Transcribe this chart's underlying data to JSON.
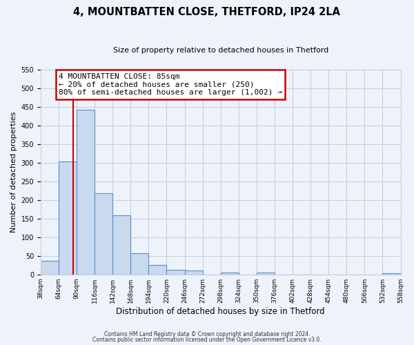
{
  "title": "4, MOUNTBATTEN CLOSE, THETFORD, IP24 2LA",
  "subtitle": "Size of property relative to detached houses in Thetford",
  "xlabel": "Distribution of detached houses by size in Thetford",
  "ylabel": "Number of detached properties",
  "bin_edges": [
    38,
    64,
    90,
    116,
    142,
    168,
    194,
    220,
    246,
    272,
    298,
    324,
    350,
    376,
    402,
    428,
    454,
    480,
    506,
    532,
    558
  ],
  "counts": [
    36,
    303,
    441,
    217,
    158,
    57,
    25,
    12,
    10,
    0,
    5,
    0,
    5,
    0,
    0,
    0,
    0,
    0,
    0,
    3
  ],
  "bar_color": "#c9d9f0",
  "bar_edge_color": "#5b8ec4",
  "property_line_x": 85,
  "property_line_color": "#cc0000",
  "annotation_line1": "4 MOUNTBATTEN CLOSE: 85sqm",
  "annotation_line2": "← 20% of detached houses are smaller (250)",
  "annotation_line3": "80% of semi-detached houses are larger (1,002) →",
  "annotation_box_color": "#ffffff",
  "annotation_box_edge_color": "#cc0000",
  "ylim": [
    0,
    550
  ],
  "yticks": [
    0,
    50,
    100,
    150,
    200,
    250,
    300,
    350,
    400,
    450,
    500,
    550
  ],
  "footer_line1": "Contains HM Land Registry data © Crown copyright and database right 2024.",
  "footer_line2": "Contains public sector information licensed under the Open Government Licence v3.0.",
  "bg_color": "#eef2fb",
  "grid_color": "#c8d0e0",
  "title_fontsize": 10.5,
  "subtitle_fontsize": 8,
  "ylabel_fontsize": 8,
  "xlabel_fontsize": 8.5,
  "tick_fontsize": 6.5,
  "annotation_fontsize": 8
}
